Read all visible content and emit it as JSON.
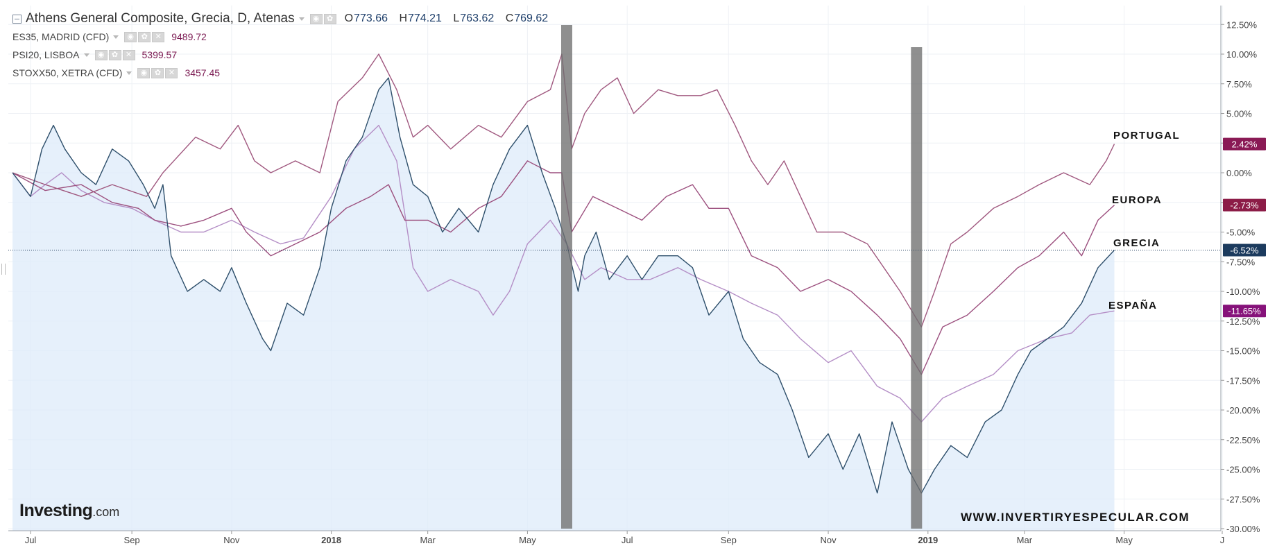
{
  "legend": {
    "main": {
      "name": "Athens General Composite, Grecia, D, Atenas",
      "o_label": "O",
      "o_value": "773.66",
      "h_label": "H",
      "h_value": "774.21",
      "l_label": "L",
      "l_value": "763.62",
      "c_label": "C",
      "c_value": "769.62"
    },
    "items": [
      {
        "name": "ES35, MADRID (CFD)",
        "value": "9489.72"
      },
      {
        "name": "PSI20, LISBOA",
        "value": "5399.57"
      },
      {
        "name": "STOXX50, XETRA (CFD)",
        "value": "3457.45"
      }
    ]
  },
  "labels": {
    "portugal": "PORTUGAL",
    "europa": "EUROPA",
    "grecia": "GRECIA",
    "espana": "ESPAÑA"
  },
  "logo": {
    "word": "Investing",
    "suffix": ".com"
  },
  "watermark": "WWW.INVERTIRYESPECULAR.COM",
  "chart_data": {
    "type": "line",
    "x_unit": "date",
    "xlim": [
      "2017-06-20",
      "2019-06-30"
    ],
    "ylim": [
      -30,
      14
    ],
    "y_ticks": [
      12.5,
      10,
      7.5,
      5,
      2.5,
      0,
      -2.5,
      -5,
      -7.5,
      -10,
      -12.5,
      -15,
      -17.5,
      -20,
      -22.5,
      -25,
      -27.5,
      -30
    ],
    "y_tick_labels": [
      "12.50%",
      "10.00%",
      "7.50%",
      "5.00%",
      "2.50%",
      "0.00%",
      "-2.50%",
      "-5.00%",
      "-7.50%",
      "-10.00%",
      "-12.50%",
      "-15.00%",
      "-17.50%",
      "-20.00%",
      "-22.50%",
      "-25.00%",
      "-27.50%",
      "-30.00%"
    ],
    "x_ticks": [
      {
        "date": "2017-07-01",
        "label": "Jul",
        "bold": false
      },
      {
        "date": "2017-09-01",
        "label": "Sep",
        "bold": false
      },
      {
        "date": "2017-11-01",
        "label": "Nov",
        "bold": false
      },
      {
        "date": "2018-01-01",
        "label": "2018",
        "bold": true
      },
      {
        "date": "2018-03-01",
        "label": "Mar",
        "bold": false
      },
      {
        "date": "2018-05-01",
        "label": "May",
        "bold": false
      },
      {
        "date": "2018-07-01",
        "label": "Jul",
        "bold": false
      },
      {
        "date": "2018-09-01",
        "label": "Sep",
        "bold": false
      },
      {
        "date": "2018-11-01",
        "label": "Nov",
        "bold": false
      },
      {
        "date": "2019-01-01",
        "label": "2019",
        "bold": true
      },
      {
        "date": "2019-03-01",
        "label": "Mar",
        "bold": false
      },
      {
        "date": "2019-05-01",
        "label": "May",
        "bold": false
      },
      {
        "date": "2019-06-30",
        "label": "J",
        "bold": false
      }
    ],
    "reference_line": -6.52,
    "highlight_bands": [
      {
        "date": "2018-05-25"
      },
      {
        "date": "2018-12-25"
      }
    ],
    "series": [
      {
        "name": "Athens General Composite",
        "color": "#2e4f6b",
        "fill": "#deebf9",
        "end_label": "-6.52%",
        "points": [
          [
            "2017-06-20",
            0
          ],
          [
            "2017-07-01",
            -2
          ],
          [
            "2017-07-08",
            2
          ],
          [
            "2017-07-15",
            4
          ],
          [
            "2017-07-22",
            2
          ],
          [
            "2017-08-01",
            0
          ],
          [
            "2017-08-10",
            -1
          ],
          [
            "2017-08-20",
            2
          ],
          [
            "2017-08-30",
            1
          ],
          [
            "2017-09-08",
            -1
          ],
          [
            "2017-09-15",
            -3
          ],
          [
            "2017-09-20",
            -1
          ],
          [
            "2017-09-25",
            -7
          ],
          [
            "2017-10-05",
            -10
          ],
          [
            "2017-10-15",
            -9
          ],
          [
            "2017-10-25",
            -10
          ],
          [
            "2017-11-01",
            -8
          ],
          [
            "2017-11-10",
            -11
          ],
          [
            "2017-11-20",
            -14
          ],
          [
            "2017-11-25",
            -15
          ],
          [
            "2017-12-05",
            -11
          ],
          [
            "2017-12-15",
            -12
          ],
          [
            "2017-12-25",
            -8
          ],
          [
            "2018-01-01",
            -3
          ],
          [
            "2018-01-10",
            1
          ],
          [
            "2018-01-20",
            3
          ],
          [
            "2018-01-30",
            7
          ],
          [
            "2018-02-05",
            8
          ],
          [
            "2018-02-12",
            3
          ],
          [
            "2018-02-20",
            -1
          ],
          [
            "2018-03-01",
            -2
          ],
          [
            "2018-03-10",
            -5
          ],
          [
            "2018-03-20",
            -3
          ],
          [
            "2018-04-01",
            -5
          ],
          [
            "2018-04-10",
            -1
          ],
          [
            "2018-04-20",
            2
          ],
          [
            "2018-05-01",
            4
          ],
          [
            "2018-05-10",
            0
          ],
          [
            "2018-05-18",
            -3
          ],
          [
            "2018-05-25",
            -6
          ],
          [
            "2018-06-01",
            -10
          ],
          [
            "2018-06-05",
            -7
          ],
          [
            "2018-06-12",
            -5
          ],
          [
            "2018-06-20",
            -9
          ],
          [
            "2018-07-01",
            -7
          ],
          [
            "2018-07-10",
            -9
          ],
          [
            "2018-07-20",
            -7
          ],
          [
            "2018-08-01",
            -7
          ],
          [
            "2018-08-10",
            -8
          ],
          [
            "2018-08-20",
            -12
          ],
          [
            "2018-09-01",
            -10
          ],
          [
            "2018-09-10",
            -14
          ],
          [
            "2018-09-20",
            -16
          ],
          [
            "2018-10-01",
            -17
          ],
          [
            "2018-10-10",
            -20
          ],
          [
            "2018-10-20",
            -24
          ],
          [
            "2018-11-01",
            -22
          ],
          [
            "2018-11-10",
            -25
          ],
          [
            "2018-11-20",
            -22
          ],
          [
            "2018-12-01",
            -27
          ],
          [
            "2018-12-10",
            -21
          ],
          [
            "2018-12-20",
            -25
          ],
          [
            "2018-12-28",
            -27
          ],
          [
            "2019-01-05",
            -25
          ],
          [
            "2019-01-15",
            -23
          ],
          [
            "2019-01-25",
            -24
          ],
          [
            "2019-02-05",
            -21
          ],
          [
            "2019-02-15",
            -20
          ],
          [
            "2019-02-25",
            -17
          ],
          [
            "2019-03-05",
            -15
          ],
          [
            "2019-03-15",
            -14
          ],
          [
            "2019-03-25",
            -13
          ],
          [
            "2019-04-05",
            -11
          ],
          [
            "2019-04-15",
            -8
          ],
          [
            "2019-04-25",
            -6.52
          ]
        ]
      },
      {
        "name": "ES35, MADRID (CFD)",
        "color": "#b48ec6",
        "fill": null,
        "end_label": "-11.65%",
        "points": [
          [
            "2017-06-20",
            0
          ],
          [
            "2017-07-01",
            -2
          ],
          [
            "2017-07-10",
            -1
          ],
          [
            "2017-07-20",
            0
          ],
          [
            "2017-08-01",
            -1.5
          ],
          [
            "2017-08-15",
            -2.5
          ],
          [
            "2017-09-01",
            -3
          ],
          [
            "2017-09-15",
            -4
          ],
          [
            "2017-10-01",
            -5
          ],
          [
            "2017-10-15",
            -5
          ],
          [
            "2017-11-01",
            -4
          ],
          [
            "2017-11-15",
            -5
          ],
          [
            "2017-12-01",
            -6
          ],
          [
            "2017-12-15",
            -5.5
          ],
          [
            "2018-01-01",
            -2
          ],
          [
            "2018-01-15",
            2
          ],
          [
            "2018-01-30",
            4
          ],
          [
            "2018-02-10",
            1
          ],
          [
            "2018-02-20",
            -8
          ],
          [
            "2018-03-01",
            -10
          ],
          [
            "2018-03-15",
            -9
          ],
          [
            "2018-04-01",
            -10
          ],
          [
            "2018-04-10",
            -12
          ],
          [
            "2018-04-20",
            -10
          ],
          [
            "2018-05-01",
            -6
          ],
          [
            "2018-05-15",
            -4
          ],
          [
            "2018-05-25",
            -6
          ],
          [
            "2018-06-05",
            -9
          ],
          [
            "2018-06-15",
            -8
          ],
          [
            "2018-07-01",
            -9
          ],
          [
            "2018-07-15",
            -9
          ],
          [
            "2018-08-01",
            -8
          ],
          [
            "2018-08-15",
            -9
          ],
          [
            "2018-09-01",
            -10
          ],
          [
            "2018-09-15",
            -11
          ],
          [
            "2018-10-01",
            -12
          ],
          [
            "2018-10-15",
            -14
          ],
          [
            "2018-11-01",
            -16
          ],
          [
            "2018-11-15",
            -15
          ],
          [
            "2018-12-01",
            -18
          ],
          [
            "2018-12-15",
            -19
          ],
          [
            "2018-12-28",
            -21
          ],
          [
            "2019-01-10",
            -19
          ],
          [
            "2019-01-25",
            -18
          ],
          [
            "2019-02-10",
            -17
          ],
          [
            "2019-02-25",
            -15
          ],
          [
            "2019-03-15",
            -14
          ],
          [
            "2019-03-30",
            -13.5
          ],
          [
            "2019-04-10",
            -12
          ],
          [
            "2019-04-25",
            -11.65
          ]
        ]
      },
      {
        "name": "PSI20, LISBOA",
        "color": "#a0587f",
        "fill": null,
        "end_label": "2.42%",
        "points": [
          [
            "2017-06-20",
            0
          ],
          [
            "2017-07-10",
            -1
          ],
          [
            "2017-08-01",
            -2
          ],
          [
            "2017-08-20",
            -1
          ],
          [
            "2017-09-10",
            -2
          ],
          [
            "2017-09-20",
            0
          ],
          [
            "2017-10-10",
            3
          ],
          [
            "2017-10-25",
            2
          ],
          [
            "2017-11-05",
            4
          ],
          [
            "2017-11-15",
            1
          ],
          [
            "2017-11-25",
            0
          ],
          [
            "2017-12-10",
            1
          ],
          [
            "2017-12-25",
            0
          ],
          [
            "2018-01-05",
            6
          ],
          [
            "2018-01-20",
            8
          ],
          [
            "2018-01-30",
            10
          ],
          [
            "2018-02-10",
            7
          ],
          [
            "2018-02-20",
            3
          ],
          [
            "2018-03-01",
            4
          ],
          [
            "2018-03-15",
            2
          ],
          [
            "2018-04-01",
            4
          ],
          [
            "2018-04-15",
            3
          ],
          [
            "2018-05-01",
            6
          ],
          [
            "2018-05-15",
            7
          ],
          [
            "2018-05-22",
            10
          ],
          [
            "2018-05-28",
            2
          ],
          [
            "2018-06-05",
            5
          ],
          [
            "2018-06-15",
            7
          ],
          [
            "2018-06-25",
            8
          ],
          [
            "2018-07-05",
            5
          ],
          [
            "2018-07-20",
            7
          ],
          [
            "2018-08-01",
            6.5
          ],
          [
            "2018-08-15",
            6.5
          ],
          [
            "2018-08-25",
            7
          ],
          [
            "2018-09-05",
            4
          ],
          [
            "2018-09-15",
            1
          ],
          [
            "2018-09-25",
            -1
          ],
          [
            "2018-10-05",
            1
          ],
          [
            "2018-10-15",
            -2
          ],
          [
            "2018-10-25",
            -5
          ],
          [
            "2018-11-10",
            -5
          ],
          [
            "2018-11-25",
            -6
          ],
          [
            "2018-12-05",
            -8
          ],
          [
            "2018-12-15",
            -10
          ],
          [
            "2018-12-28",
            -13
          ],
          [
            "2019-01-05",
            -10
          ],
          [
            "2019-01-15",
            -6
          ],
          [
            "2019-01-25",
            -5
          ],
          [
            "2019-02-10",
            -3
          ],
          [
            "2019-02-25",
            -2
          ],
          [
            "2019-03-10",
            -1
          ],
          [
            "2019-03-25",
            0
          ],
          [
            "2019-04-10",
            -1
          ],
          [
            "2019-04-20",
            1
          ],
          [
            "2019-04-25",
            2.42
          ]
        ]
      },
      {
        "name": "STOXX50, XETRA (CFD)",
        "color": "#9c4f7e",
        "fill": null,
        "end_label": "-2.73%",
        "points": [
          [
            "2017-06-20",
            0
          ],
          [
            "2017-07-10",
            -1.5
          ],
          [
            "2017-08-01",
            -1
          ],
          [
            "2017-08-20",
            -2.5
          ],
          [
            "2017-09-05",
            -3
          ],
          [
            "2017-09-15",
            -4
          ],
          [
            "2017-10-01",
            -4.5
          ],
          [
            "2017-10-15",
            -4
          ],
          [
            "2017-11-01",
            -3
          ],
          [
            "2017-11-10",
            -5
          ],
          [
            "2017-11-25",
            -7
          ],
          [
            "2017-12-10",
            -6
          ],
          [
            "2017-12-25",
            -5
          ],
          [
            "2018-01-10",
            -3
          ],
          [
            "2018-01-25",
            -2
          ],
          [
            "2018-02-05",
            -1
          ],
          [
            "2018-02-15",
            -4
          ],
          [
            "2018-03-01",
            -4
          ],
          [
            "2018-03-15",
            -5
          ],
          [
            "2018-04-01",
            -3
          ],
          [
            "2018-04-15",
            -2
          ],
          [
            "2018-05-01",
            1
          ],
          [
            "2018-05-15",
            0
          ],
          [
            "2018-05-22",
            0
          ],
          [
            "2018-05-28",
            -5
          ],
          [
            "2018-06-10",
            -2
          ],
          [
            "2018-06-25",
            -3
          ],
          [
            "2018-07-10",
            -4
          ],
          [
            "2018-07-25",
            -2
          ],
          [
            "2018-08-10",
            -1
          ],
          [
            "2018-08-20",
            -3
          ],
          [
            "2018-09-01",
            -3
          ],
          [
            "2018-09-15",
            -7
          ],
          [
            "2018-10-01",
            -8
          ],
          [
            "2018-10-15",
            -10
          ],
          [
            "2018-11-01",
            -9
          ],
          [
            "2018-11-15",
            -10
          ],
          [
            "2018-12-01",
            -12
          ],
          [
            "2018-12-15",
            -14
          ],
          [
            "2018-12-28",
            -17
          ],
          [
            "2019-01-10",
            -13
          ],
          [
            "2019-01-25",
            -12
          ],
          [
            "2019-02-10",
            -10
          ],
          [
            "2019-02-25",
            -8
          ],
          [
            "2019-03-10",
            -7
          ],
          [
            "2019-03-25",
            -5
          ],
          [
            "2019-04-05",
            -7
          ],
          [
            "2019-04-15",
            -4
          ],
          [
            "2019-04-25",
            -2.73
          ]
        ]
      }
    ]
  }
}
